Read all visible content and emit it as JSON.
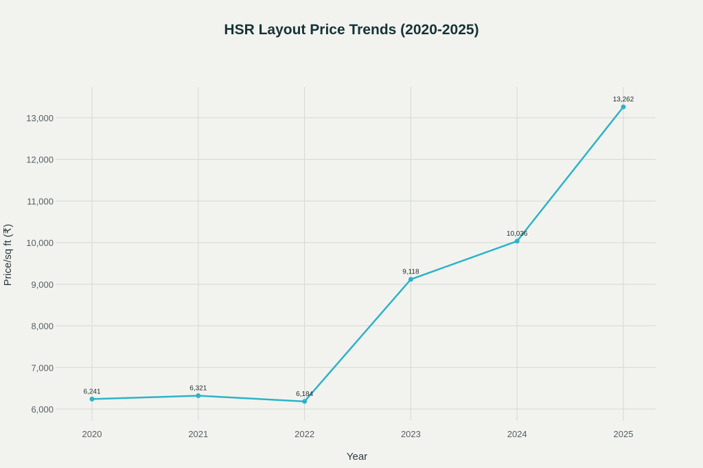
{
  "chart_data": {
    "type": "line",
    "title": "HSR Layout Price Trends (2020-2025)",
    "xlabel": "Year",
    "ylabel": "Price/sq ft (₹)",
    "categories": [
      "2020",
      "2021",
      "2022",
      "2023",
      "2024",
      "2025"
    ],
    "series": [
      {
        "values": [
          6241,
          6321,
          6184,
          9118,
          10036,
          13262
        ],
        "value_labels": [
          "6,241",
          "6,321",
          "6,184",
          "9,118",
          "10,036",
          "13,262"
        ],
        "color": "#2bb3c9"
      }
    ],
    "y_ticks": [
      6000,
      7000,
      8000,
      9000,
      10000,
      11000,
      12000,
      13000
    ],
    "y_tick_labels": [
      "6,000",
      "7,000",
      "8,000",
      "9,000",
      "10,000",
      "11,000",
      "12,000",
      "13,000"
    ],
    "ylim": [
      5720,
      13740
    ],
    "grid": true,
    "legend": "none"
  }
}
